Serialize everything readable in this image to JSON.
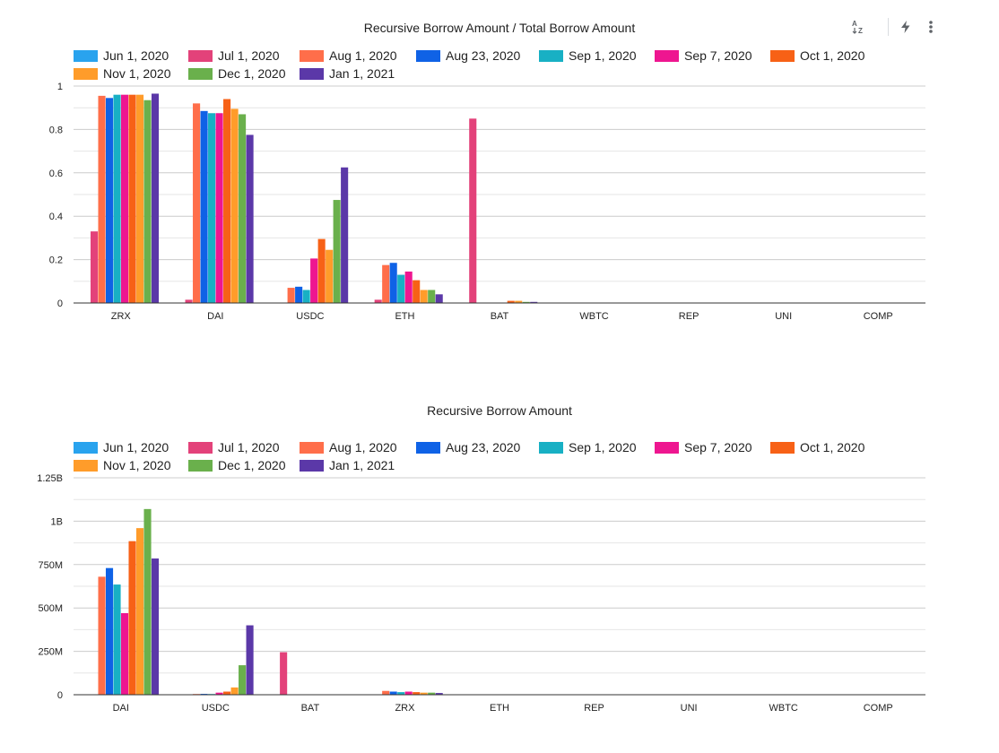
{
  "toolbar": {
    "icons": [
      "sort-az-icon",
      "bolt-icon",
      "more-vert-icon"
    ]
  },
  "series_colors": [
    "#29a3ee",
    "#e3427a",
    "#ff6e4a",
    "#0f62e6",
    "#18b0c4",
    "#ee1690",
    "#f76116",
    "#ff9c2a",
    "#6ab04c",
    "#5b38a8"
  ],
  "chart_data": [
    {
      "type": "bar",
      "title": "Recursive Borrow Amount / Total Borrow Amount",
      "xlabel": "",
      "ylabel": "",
      "ylim": [
        0,
        1
      ],
      "yticks": [
        0,
        0.2,
        0.4,
        0.6,
        0.8,
        1
      ],
      "ytick_labels": [
        "0",
        "0.2",
        "0.4",
        "0.6",
        "0.8",
        "1"
      ],
      "grid": true,
      "legend_position": "top-left",
      "categories": [
        "ZRX",
        "DAI",
        "USDC",
        "ETH",
        "BAT",
        "WBTC",
        "REP",
        "UNI",
        "COMP"
      ],
      "series": [
        {
          "name": "Jun 1, 2020",
          "values": [
            0,
            0,
            0,
            0,
            0,
            0,
            0,
            0,
            0
          ]
        },
        {
          "name": "Jul 1, 2020",
          "values": [
            0.33,
            0.015,
            0,
            0.015,
            0.85,
            0,
            0,
            0,
            0
          ]
        },
        {
          "name": "Aug 1, 2020",
          "values": [
            0.955,
            0.92,
            0.07,
            0.175,
            0,
            0,
            0,
            0,
            0
          ]
        },
        {
          "name": "Aug 23, 2020",
          "values": [
            0.945,
            0.885,
            0.075,
            0.185,
            0,
            0,
            0,
            0,
            0
          ]
        },
        {
          "name": "Sep 1, 2020",
          "values": [
            0.96,
            0.875,
            0.06,
            0.13,
            0,
            0,
            0,
            0,
            0
          ]
        },
        {
          "name": "Sep 7, 2020",
          "values": [
            0.96,
            0.875,
            0.205,
            0.145,
            0,
            0,
            0,
            0,
            0
          ]
        },
        {
          "name": "Oct 1, 2020",
          "values": [
            0.96,
            0.94,
            0.295,
            0.105,
            0.01,
            0,
            0,
            0,
            0
          ]
        },
        {
          "name": "Nov 1, 2020",
          "values": [
            0.96,
            0.895,
            0.245,
            0.06,
            0.01,
            0,
            0,
            0,
            0
          ]
        },
        {
          "name": "Dec 1, 2020",
          "values": [
            0.935,
            0.87,
            0.475,
            0.06,
            0.005,
            0,
            0,
            0,
            0
          ]
        },
        {
          "name": "Jan 1, 2021",
          "values": [
            0.965,
            0.775,
            0.625,
            0.04,
            0.005,
            0,
            0,
            0,
            0
          ]
        }
      ]
    },
    {
      "type": "bar",
      "title": "Recursive Borrow Amount",
      "xlabel": "",
      "ylabel": "",
      "ylim": [
        0,
        1250000000
      ],
      "yticks": [
        0,
        250000000,
        500000000,
        750000000,
        1000000000,
        1250000000
      ],
      "ytick_labels": [
        "0",
        "250M",
        "500M",
        "750M",
        "1B",
        "1.25B"
      ],
      "grid": true,
      "legend_position": "top-left",
      "categories": [
        "DAI",
        "USDC",
        "BAT",
        "ZRX",
        "ETH",
        "REP",
        "UNI",
        "WBTC",
        "COMP"
      ],
      "series": [
        {
          "name": "Jun 1, 2020",
          "values": [
            0,
            0,
            0,
            0,
            0,
            0,
            0,
            0,
            0
          ]
        },
        {
          "name": "Jul 1, 2020",
          "values": [
            0,
            0,
            245000000,
            0,
            0,
            0,
            0,
            0,
            0
          ]
        },
        {
          "name": "Aug 1, 2020",
          "values": [
            680000000,
            2000000,
            0,
            22000000,
            0,
            0,
            0,
            0,
            0
          ]
        },
        {
          "name": "Aug 23, 2020",
          "values": [
            730000000,
            5000000,
            0,
            18000000,
            0,
            0,
            0,
            0,
            0
          ]
        },
        {
          "name": "Sep 1, 2020",
          "values": [
            635000000,
            3000000,
            0,
            15000000,
            0,
            0,
            0,
            0,
            0
          ]
        },
        {
          "name": "Sep 7, 2020",
          "values": [
            470000000,
            12000000,
            0,
            18000000,
            0,
            0,
            0,
            0,
            0
          ]
        },
        {
          "name": "Oct 1, 2020",
          "values": [
            885000000,
            18000000,
            0,
            15000000,
            0,
            0,
            0,
            0,
            0
          ]
        },
        {
          "name": "Nov 1, 2020",
          "values": [
            960000000,
            42000000,
            0,
            12000000,
            0,
            0,
            0,
            0,
            0
          ]
        },
        {
          "name": "Dec 1, 2020",
          "values": [
            1070000000,
            170000000,
            0,
            12000000,
            0,
            0,
            0,
            0,
            0
          ]
        },
        {
          "name": "Jan 1, 2021",
          "values": [
            785000000,
            400000000,
            0,
            10000000,
            0,
            0,
            0,
            0,
            0
          ]
        }
      ]
    }
  ]
}
